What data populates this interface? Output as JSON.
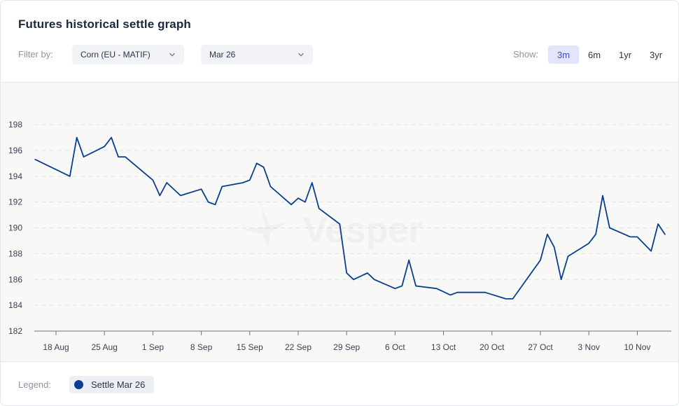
{
  "header": {
    "title": "Futures historical settle graph"
  },
  "filters": {
    "label": "Filter by:",
    "commodity": "Corn (EU - MATIF)",
    "contract": "Mar 26"
  },
  "show": {
    "label": "Show:",
    "ranges": [
      "3m",
      "6m",
      "1yr",
      "3yr"
    ],
    "active": "3m"
  },
  "watermark": "Vesper",
  "legend": {
    "label": "Legend:",
    "item": "Settle Mar 26",
    "color": "#0a3d91"
  },
  "colors": {
    "line": "#0a3d91",
    "grid": "#e1e2e4",
    "accent": "#3f49c7"
  },
  "chart_data": {
    "type": "line",
    "title": "",
    "xlabel": "",
    "ylabel": "",
    "ylim": [
      182,
      198
    ],
    "yticks": [
      182,
      184,
      186,
      188,
      190,
      192,
      194,
      196,
      198
    ],
    "xticks": [
      "18 Aug",
      "25 Aug",
      "1 Sep",
      "8 Sep",
      "15 Sep",
      "22 Sep",
      "29 Sep",
      "6 Oct",
      "13 Oct",
      "20 Oct",
      "27 Oct",
      "3 Nov",
      "10 Nov"
    ],
    "grid": "horizontal-dashed",
    "series": [
      {
        "name": "Settle Mar 26",
        "x": [
          "15 Aug",
          "20 Aug",
          "21 Aug",
          "22 Aug",
          "25 Aug",
          "26 Aug",
          "27 Aug",
          "28 Aug",
          "1 Sep",
          "2 Sep",
          "3 Sep",
          "5 Sep",
          "8 Sep",
          "9 Sep",
          "10 Sep",
          "11 Sep",
          "14 Sep",
          "15 Sep",
          "16 Sep",
          "17 Sep",
          "18 Sep",
          "21 Sep",
          "22 Sep",
          "23 Sep",
          "24 Sep",
          "25 Sep",
          "28 Sep",
          "29 Sep",
          "30 Sep",
          "2 Oct",
          "3 Oct",
          "6 Oct",
          "7 Oct",
          "8 Oct",
          "9 Oct",
          "12 Oct",
          "14 Oct",
          "15 Oct",
          "16 Oct",
          "19 Oct",
          "22 Oct",
          "23 Oct",
          "27 Oct",
          "28 Oct",
          "29 Oct",
          "30 Oct",
          "31 Oct",
          "3 Nov",
          "4 Nov",
          "5 Nov",
          "6 Nov",
          "9 Nov",
          "10 Nov",
          "12 Nov",
          "13 Nov",
          "14 Nov"
        ],
        "values": [
          195.3,
          194.0,
          197.0,
          195.5,
          196.3,
          197.0,
          195.5,
          195.5,
          193.7,
          192.5,
          193.5,
          192.5,
          193.0,
          192.0,
          191.8,
          193.2,
          193.5,
          193.7,
          195.0,
          194.7,
          193.2,
          191.8,
          192.3,
          192.0,
          193.5,
          191.5,
          190.3,
          186.5,
          186.0,
          186.5,
          186.0,
          185.3,
          185.5,
          187.5,
          185.5,
          185.3,
          184.8,
          185.0,
          185.0,
          185.0,
          184.5,
          184.5,
          187.5,
          189.5,
          188.5,
          186.0,
          187.8,
          188.8,
          189.5,
          192.5,
          190.0,
          189.3,
          189.3,
          188.2,
          190.3,
          189.5
        ]
      }
    ]
  }
}
